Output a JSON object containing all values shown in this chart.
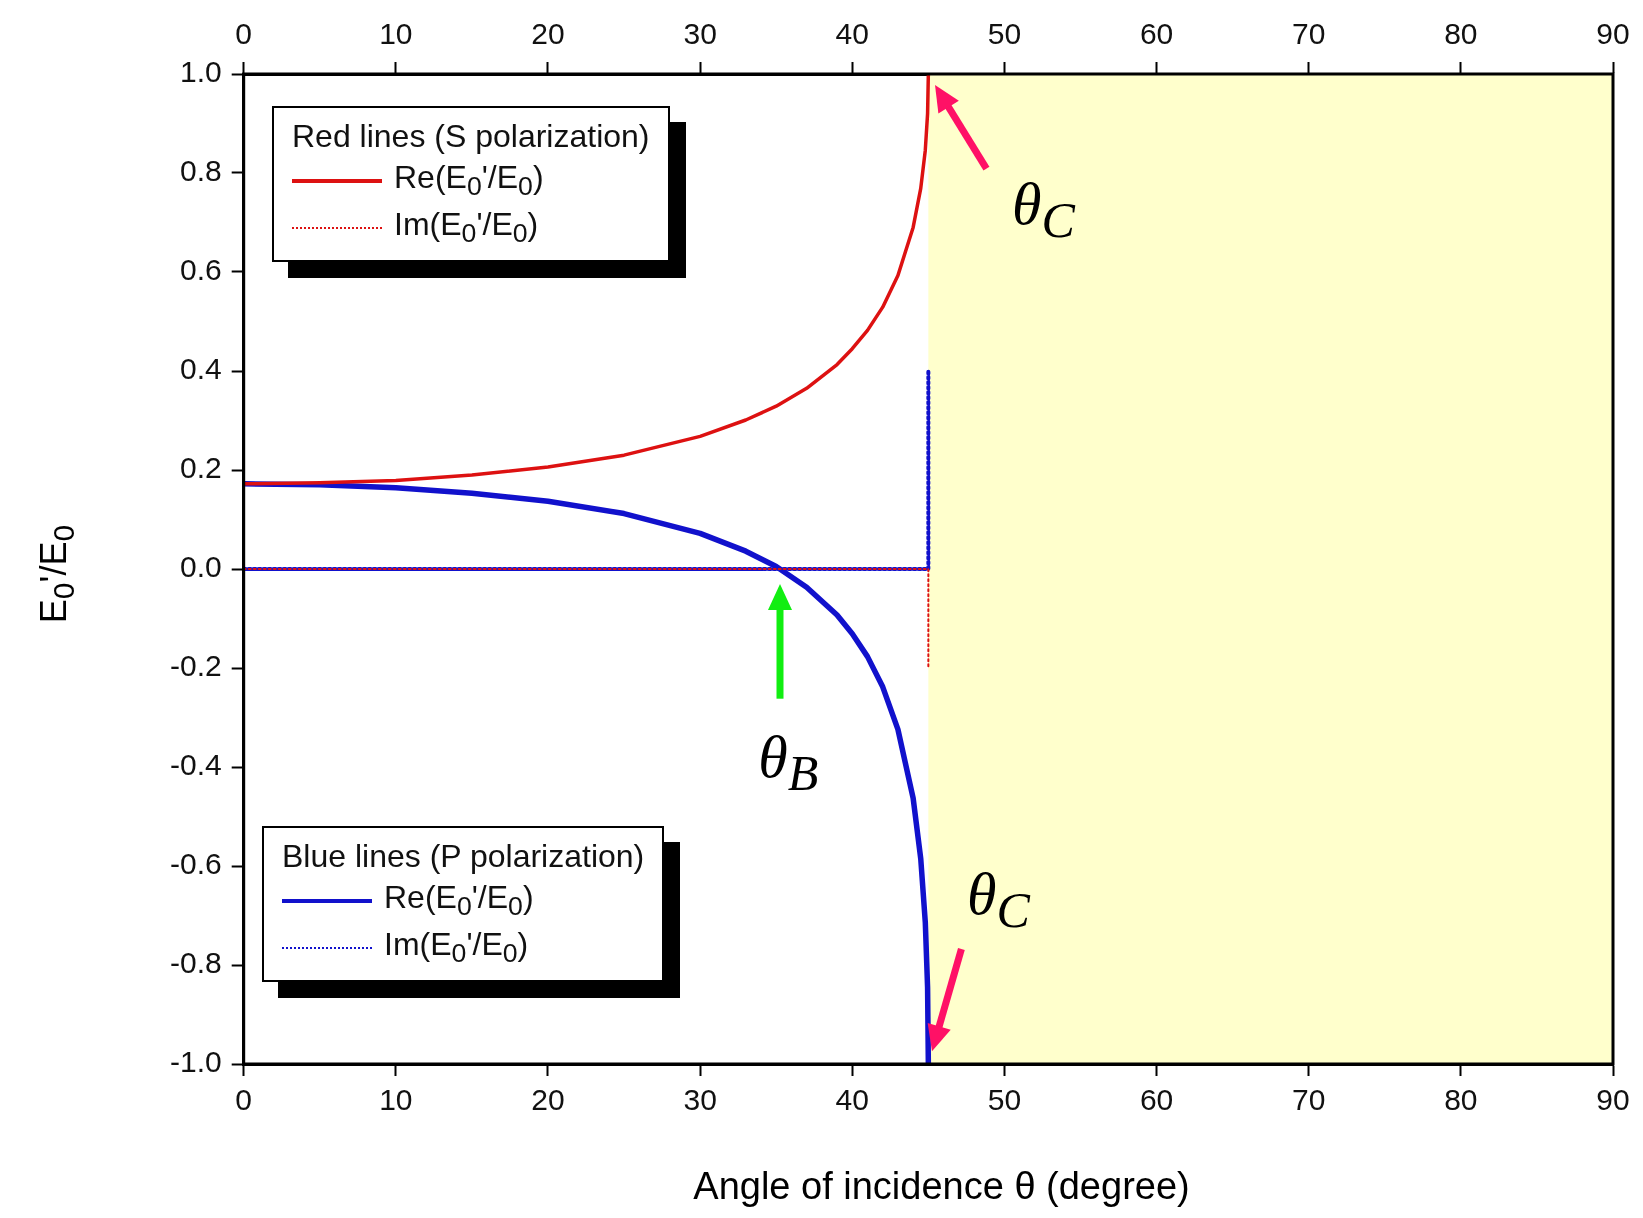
{
  "chart_data": {
    "type": "line",
    "xlabel": "Angle of incidence θ (degree)",
    "ylabel": "E$_{0}$'/E$_{0}$",
    "xlim": [
      0,
      90
    ],
    "xticks": [
      0,
      10,
      20,
      30,
      40,
      50,
      60,
      70,
      80,
      90
    ],
    "x2lim": [
      0,
      90
    ],
    "x2ticks": [
      0,
      10,
      20,
      30,
      40,
      50,
      60,
      70,
      80,
      90
    ],
    "ylim": [
      -1,
      1
    ],
    "yticks": [
      {
        "value": -1,
        "label": "-1.0"
      },
      {
        "value": -0.8,
        "label": "-0.8"
      },
      {
        "value": -0.6,
        "label": "-0.6"
      },
      {
        "value": -0.4,
        "label": "-0.4"
      },
      {
        "value": -0.2,
        "label": "-0.2"
      },
      {
        "value": 0,
        "label": "0.0"
      },
      {
        "value": 0.2,
        "label": "0.2"
      },
      {
        "value": 0.4,
        "label": "0.4"
      },
      {
        "value": 0.6,
        "label": "0.6"
      },
      {
        "value": 0.8,
        "label": "0.8"
      },
      {
        "value": 1,
        "label": "1.0"
      }
    ],
    "grid": false,
    "legend": "left",
    "marker": "none",
    "legend_title": "Red lines (S polarization)",
    "series": [
      {
        "name": "Re(E$_{0}$'/E$_{0}$)",
        "color": "#dd1111",
        "line_style": "solid",
        "x": [
          0,
          5,
          10,
          15,
          20,
          25,
          30,
          33,
          35,
          37,
          39,
          40,
          41,
          42,
          43,
          44,
          44.5,
          44.8,
          44.95,
          45
        ],
        "values": [
          0.172,
          0.174,
          0.179,
          0.19,
          0.206,
          0.23,
          0.268,
          0.301,
          0.329,
          0.365,
          0.413,
          0.445,
          0.482,
          0.529,
          0.593,
          0.69,
          0.769,
          0.846,
          0.92,
          1.0
        ]
      },
      {
        "name": "Im(E$_{0}$'/E$_{0}$)",
        "color": "#dd1111",
        "line_style": "dotted",
        "x": [
          0,
          45,
          45
        ],
        "values": [
          0,
          0,
          -0.2
        ]
      },
      {
        "name": "Re(E$_{0}$'/E$_{0}$)",
        "color": "#1111cc",
        "line_style": "solid",
        "x": [
          0,
          5,
          10,
          15,
          20,
          25,
          30,
          33,
          35,
          37,
          39,
          40,
          41,
          42,
          43,
          44,
          44.5,
          44.8,
          44.95,
          45
        ],
        "values": [
          0.172,
          0.17,
          0.164,
          0.153,
          0.137,
          0.112,
          0.072,
          0.036,
          0.005,
          -0.037,
          -0.093,
          -0.131,
          -0.177,
          -0.238,
          -0.324,
          -0.463,
          -0.585,
          -0.714,
          -0.846,
          -1.0
        ]
      },
      {
        "name": "Im(E$_{0}$'/E$_{0}$)",
        "color": "#1111cc",
        "line_style": "dotted",
        "x": [
          0,
          45,
          45
        ],
        "values": [
          0,
          0,
          0.4
        ]
      }
    ],
    "bands": [
      {
        "axis": "x",
        "from": 45,
        "to": 90,
        "color": "#ffffcc"
      }
    ],
    "annotations": [
      "Blue lines (P polarization)",
      "θ$_{C}$",
      "θ$_{B}$",
      "θ$_{C}$"
    ]
  }
}
